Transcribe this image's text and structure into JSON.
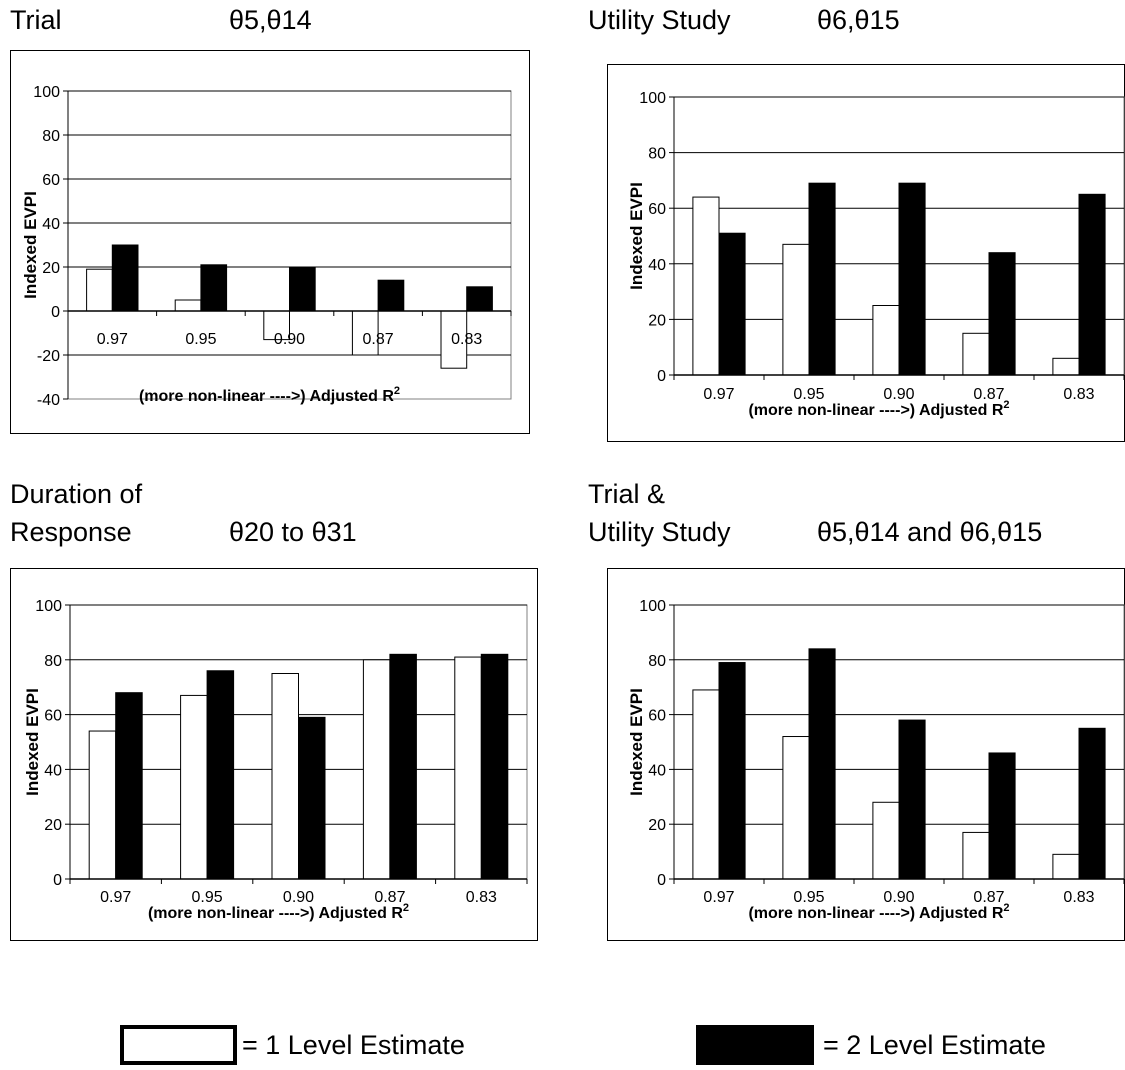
{
  "chart_data": [
    {
      "type": "bar",
      "title_lines": [
        "Trial"
      ],
      "parameters": "θ5,θ14",
      "ylabel": "Indexed EVPI",
      "xlabel": "(more non-linear ---->)  Adjusted R",
      "xlabel_sup": "2",
      "ylim": [
        -40,
        100
      ],
      "yticks": [
        -40,
        -20,
        0,
        20,
        40,
        60,
        80,
        100
      ],
      "categories": [
        "0.97",
        "0.95",
        "0.90",
        "0.87",
        "0.83"
      ],
      "series": [
        {
          "name": "1 Level Estimate",
          "values": [
            19,
            5,
            -13,
            -20,
            -26
          ]
        },
        {
          "name": "2 Level Estimate",
          "values": [
            30,
            21,
            20,
            14,
            11
          ]
        }
      ]
    },
    {
      "type": "bar",
      "title_lines": [
        "Utility Study"
      ],
      "parameters": "θ6,θ15",
      "ylabel": "Indexed EVPI",
      "xlabel": "(more non-linear ---->)  Adjusted R",
      "xlabel_sup": "2",
      "ylim": [
        0,
        100
      ],
      "yticks": [
        0,
        20,
        40,
        60,
        80,
        100
      ],
      "categories": [
        "0.97",
        "0.95",
        "0.90",
        "0.87",
        "0.83"
      ],
      "series": [
        {
          "name": "1 Level Estimate",
          "values": [
            64,
            47,
            25,
            15,
            6
          ]
        },
        {
          "name": "2 Level Estimate",
          "values": [
            51,
            69,
            69,
            44,
            65
          ]
        }
      ]
    },
    {
      "type": "bar",
      "title_lines": [
        "Duration of",
        "Response"
      ],
      "parameters": "θ20 to θ31",
      "ylabel": "Indexed EVPI",
      "xlabel": "(more non-linear ---->)  Adjusted R",
      "xlabel_sup": "2",
      "ylim": [
        0,
        100
      ],
      "yticks": [
        0,
        20,
        40,
        60,
        80,
        100
      ],
      "categories": [
        "0.97",
        "0.95",
        "0.90",
        "0.87",
        "0.83"
      ],
      "series": [
        {
          "name": "1 Level Estimate",
          "values": [
            54,
            67,
            75,
            80,
            81
          ]
        },
        {
          "name": "2 Level Estimate",
          "values": [
            68,
            76,
            59,
            82,
            82
          ]
        }
      ]
    },
    {
      "type": "bar",
      "title_lines": [
        "Trial &",
        "Utility Study"
      ],
      "parameters": "θ5,θ14 and θ6,θ15",
      "ylabel": "Indexed EVPI",
      "xlabel": "(more non-linear ---->)  Adjusted R",
      "xlabel_sup": "2",
      "ylim": [
        0,
        100
      ],
      "yticks": [
        0,
        20,
        40,
        60,
        80,
        100
      ],
      "categories": [
        "0.97",
        "0.95",
        "0.90",
        "0.87",
        "0.83"
      ],
      "series": [
        {
          "name": "1 Level Estimate",
          "values": [
            69,
            52,
            28,
            17,
            9
          ]
        },
        {
          "name": "2 Level Estimate",
          "values": [
            79,
            84,
            58,
            46,
            55
          ]
        }
      ]
    }
  ],
  "legend": {
    "one_level": "= 1 Level Estimate",
    "two_level": "= 2 Level Estimate"
  },
  "colors": {
    "series1_fill": "#ffffff",
    "series2_fill": "#000000",
    "stroke": "#000000",
    "grid": "#000000"
  }
}
